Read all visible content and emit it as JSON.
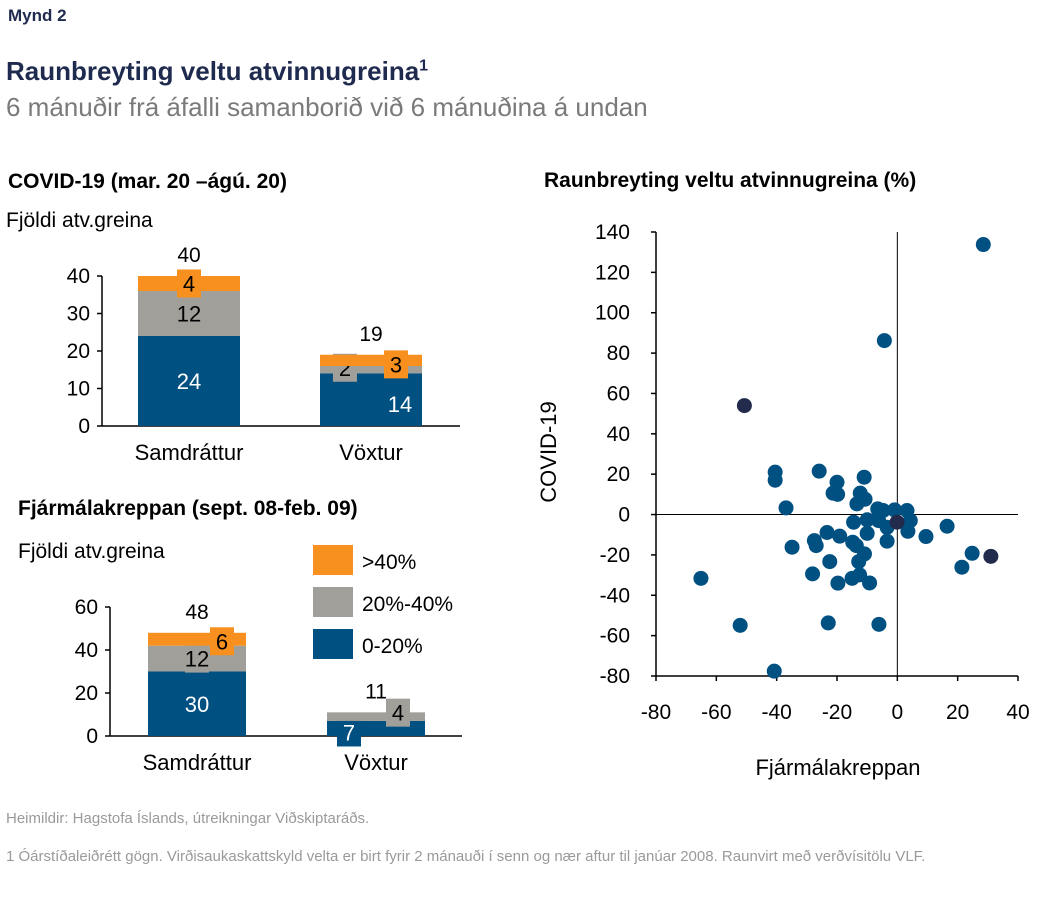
{
  "figure_label": "Mynd 2",
  "title": "Raunbreyting veltu atvinnugreina",
  "title_footnote_mark": "1",
  "subtitle": "6 mánuðir frá áfalli samanborið við 6 mánuðina á undan",
  "source": "Heimildir: Hagstofa Íslands, útreikningar Viðskiptaráðs.",
  "footnote": "1 Óárstíðaleiðrétt gögn. Virðisaukaskattskyld velta er birt fyrir 2 mánauði  í senn  og nær aftur til janúar 2008. Raunvirt með verðvísitölu VLF.",
  "colors": {
    "navy": "#1f2a4f",
    "blue": "#005082",
    "grey": "#a09f9a",
    "orange": "#f7901e",
    "dark_point": "#232b4d"
  },
  "chart_data": [
    {
      "type": "bar",
      "stacked": true,
      "title": "COVID-19 (mar. 20 –ágú. 20)",
      "ylabel": "Fjöldi atv.greina",
      "ylim": [
        0,
        40
      ],
      "yticks": [
        "0",
        "10",
        "20",
        "30",
        "40"
      ],
      "categories": [
        "Samdráttur",
        "Vöxtur"
      ],
      "totals": [
        40,
        19
      ],
      "series": [
        {
          "name": "0-20%",
          "values": [
            24,
            14
          ]
        },
        {
          "name": "20%-40%",
          "values": [
            12,
            2
          ]
        },
        {
          "name": ">40%",
          "values": [
            4,
            3
          ]
        }
      ]
    },
    {
      "type": "bar",
      "stacked": true,
      "title": "Fjármálakreppan (sept. 08-feb. 09)",
      "ylabel": "Fjöldi atv.greina",
      "ylim": [
        0,
        60
      ],
      "yticks": [
        "0",
        "20",
        "40",
        "60"
      ],
      "categories": [
        "Samdráttur",
        "Vöxtur"
      ],
      "totals": [
        48,
        11
      ],
      "legend": {
        "placement": "top-right",
        "entries": [
          ">40%",
          "20%-40%",
          "0-20%"
        ]
      },
      "series": [
        {
          "name": "0-20%",
          "values": [
            30,
            7
          ]
        },
        {
          "name": "20%-40%",
          "values": [
            12,
            4
          ]
        },
        {
          "name": ">40%",
          "values": [
            6,
            0
          ]
        }
      ]
    },
    {
      "type": "scatter",
      "title": "Raunbreyting veltu atvinnugreina (%)",
      "xlabel": "Fjármálakreppan",
      "ylabel": "COVID-19",
      "xlim": [
        -80,
        40
      ],
      "ylim": [
        -80,
        140
      ],
      "xticks": [
        "-80",
        "-60",
        "-40",
        "-20",
        "0",
        "20",
        "40"
      ],
      "yticks": [
        "-80",
        "-60",
        "-40",
        "-20",
        "0",
        "20",
        "40",
        "60",
        "80",
        "100",
        "120",
        "140"
      ],
      "points": [
        {
          "x": 28.5,
          "y": 133.8
        },
        {
          "x": -4.3,
          "y": 86.2
        },
        {
          "x": -50.7,
          "y": 54,
          "highlight": true
        },
        {
          "x": -40.5,
          "y": 21
        },
        {
          "x": -40.5,
          "y": 17
        },
        {
          "x": -25.9,
          "y": 21.5
        },
        {
          "x": -20,
          "y": 16
        },
        {
          "x": -21.3,
          "y": 10.6
        },
        {
          "x": -19.8,
          "y": 10
        },
        {
          "x": -11,
          "y": 18.5
        },
        {
          "x": -12.3,
          "y": 10.6
        },
        {
          "x": -10.7,
          "y": 7.6
        },
        {
          "x": -13.4,
          "y": 5.3
        },
        {
          "x": -36.9,
          "y": 3.3
        },
        {
          "x": -6.5,
          "y": 2.8
        },
        {
          "x": -4.7,
          "y": 2
        },
        {
          "x": -0.9,
          "y": 2.3
        },
        {
          "x": 3.2,
          "y": 2
        },
        {
          "x": 4.3,
          "y": -3
        },
        {
          "x": -14.5,
          "y": -3.8
        },
        {
          "x": -10,
          "y": -2.6
        },
        {
          "x": -6.2,
          "y": -3
        },
        {
          "x": -3.4,
          "y": -6.3
        },
        {
          "x": 3.5,
          "y": -8.3
        },
        {
          "x": -10,
          "y": -9.3
        },
        {
          "x": -3.4,
          "y": -13.2
        },
        {
          "x": 9.5,
          "y": -10.9
        },
        {
          "x": 16.5,
          "y": -5.8
        },
        {
          "x": 24.8,
          "y": -19.2
        },
        {
          "x": 21.4,
          "y": -26.1
        },
        {
          "x": -23.3,
          "y": -8.9
        },
        {
          "x": -19.1,
          "y": -10.7
        },
        {
          "x": -27.5,
          "y": -12.9
        },
        {
          "x": -26.9,
          "y": -15.4
        },
        {
          "x": -34.9,
          "y": -16.2
        },
        {
          "x": -14.8,
          "y": -13.7
        },
        {
          "x": -13.6,
          "y": -15.4
        },
        {
          "x": -10.9,
          "y": -19.5
        },
        {
          "x": -12.8,
          "y": -23.3
        },
        {
          "x": -22.4,
          "y": -23.3
        },
        {
          "x": -28.1,
          "y": -29.4
        },
        {
          "x": -12.5,
          "y": -29.9
        },
        {
          "x": -15,
          "y": -31.6
        },
        {
          "x": -19.7,
          "y": -34
        },
        {
          "x": -9.2,
          "y": -33.9
        },
        {
          "x": -65.1,
          "y": -31.6
        },
        {
          "x": -52.1,
          "y": -54.9
        },
        {
          "x": -22.9,
          "y": -53.7
        },
        {
          "x": -6.1,
          "y": -54.4
        },
        {
          "x": -40.8,
          "y": -77.6
        },
        {
          "x": -0.1,
          "y": -3.8,
          "highlight": true
        },
        {
          "x": 31,
          "y": -20.7,
          "highlight": true
        }
      ]
    }
  ]
}
